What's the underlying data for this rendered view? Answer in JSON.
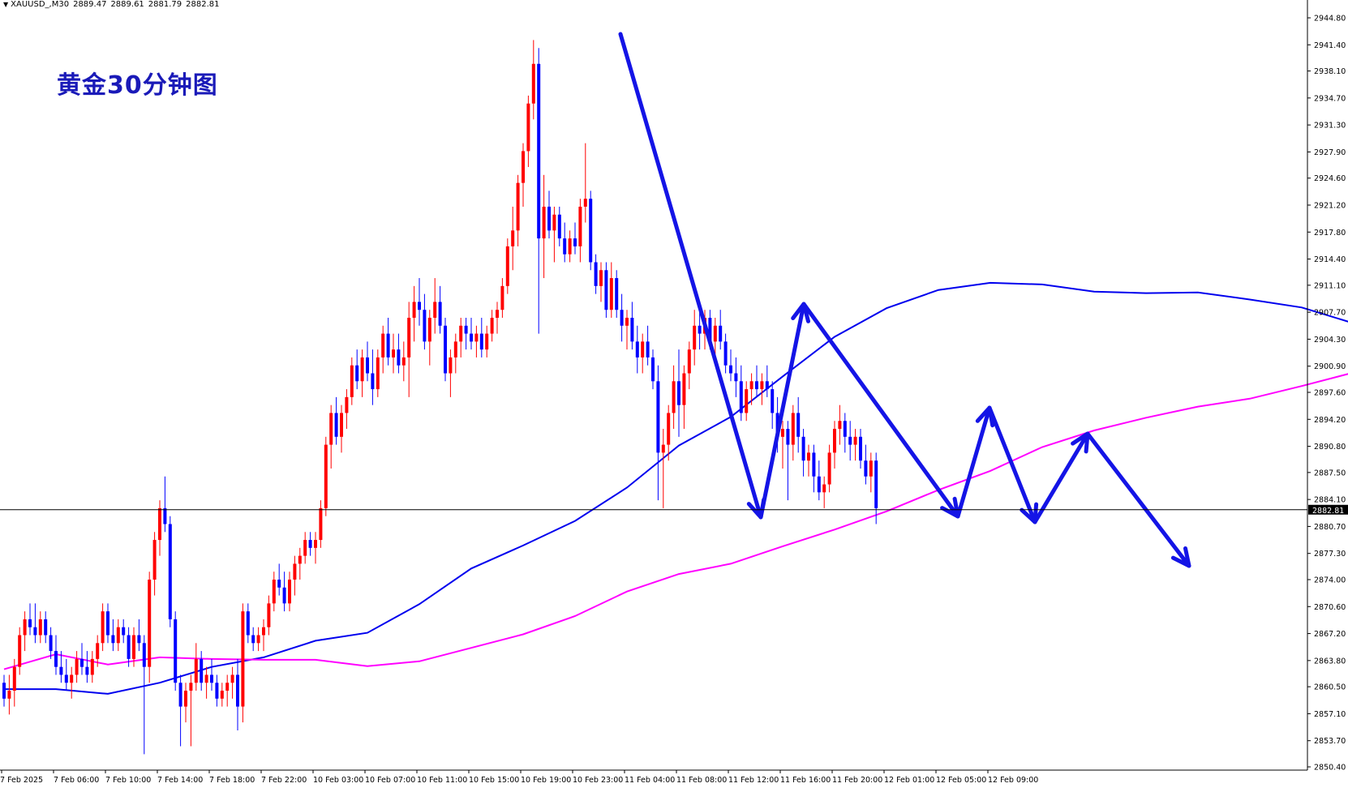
{
  "header": {
    "symbol": "XAUUSD_,M30",
    "open": "2889.47",
    "high": "2889.61",
    "low": "2881.79",
    "close": "2882.81"
  },
  "annotation_title": "黄金30分钟图",
  "colors": {
    "bull_candle": "#ff0000",
    "bear_candle": "#0000ff",
    "ma_fast": "#0000ee",
    "ma_slow": "#ff00ff",
    "arrows": "#1414e6",
    "price_line": "#000000",
    "price_tag_bg": "#000000",
    "title": "#1a1ab8"
  },
  "chart_data": {
    "type": "candlestick",
    "ylim": [
      2850.4,
      2946.0
    ],
    "y_ticks": [
      "2944.80",
      "2941.40",
      "2938.10",
      "2934.70",
      "2931.30",
      "2927.90",
      "2924.60",
      "2921.20",
      "2917.80",
      "2914.40",
      "2911.10",
      "2907.70",
      "2904.30",
      "2900.90",
      "2897.60",
      "2894.20",
      "2890.80",
      "2887.50",
      "2884.10",
      "2880.70",
      "2877.30",
      "2874.00",
      "2870.60",
      "2867.20",
      "2863.80",
      "2860.50",
      "2857.10",
      "2853.70",
      "2850.40"
    ],
    "x_ticks": [
      "7 Feb 2025",
      "7 Feb 06:00",
      "7 Feb 10:00",
      "7 Feb 14:00",
      "7 Feb 18:00",
      "7 Feb 22:00",
      "10 Feb 03:00",
      "10 Feb 07:00",
      "10 Feb 11:00",
      "10 Feb 15:00",
      "10 Feb 19:00",
      "10 Feb 23:00",
      "11 Feb 04:00",
      "11 Feb 08:00",
      "11 Feb 12:00",
      "11 Feb 16:00",
      "11 Feb 20:00",
      "12 Feb 01:00",
      "12 Feb 05:00",
      "12 Feb 09:00"
    ],
    "current_price": "2882.81",
    "current_value": 2882.81,
    "candles": [
      [
        2861,
        2862,
        2858,
        2859
      ],
      [
        2859,
        2862,
        2857,
        2860
      ],
      [
        2860,
        2864,
        2858,
        2863
      ],
      [
        2863,
        2868,
        2862,
        2867
      ],
      [
        2867,
        2870,
        2865,
        2869
      ],
      [
        2869,
        2871,
        2867,
        2868
      ],
      [
        2868,
        2871,
        2866,
        2867
      ],
      [
        2867,
        2870,
        2866,
        2869
      ],
      [
        2869,
        2870,
        2866,
        2867
      ],
      [
        2867,
        2868,
        2864,
        2865
      ],
      [
        2865,
        2867,
        2862,
        2863
      ],
      [
        2863,
        2865,
        2861,
        2862
      ],
      [
        2862,
        2864,
        2860,
        2861
      ],
      [
        2861,
        2863,
        2859,
        2862
      ],
      [
        2862,
        2865,
        2861,
        2864
      ],
      [
        2864,
        2866,
        2862,
        2863
      ],
      [
        2863,
        2865,
        2861,
        2862
      ],
      [
        2862,
        2865,
        2861,
        2864
      ],
      [
        2864,
        2867,
        2863,
        2866
      ],
      [
        2866,
        2871,
        2865,
        2870
      ],
      [
        2870,
        2871,
        2866,
        2867
      ],
      [
        2867,
        2869,
        2865,
        2866
      ],
      [
        2866,
        2869,
        2865,
        2868
      ],
      [
        2868,
        2869,
        2866,
        2867
      ],
      [
        2867,
        2868,
        2863,
        2864
      ],
      [
        2864,
        2868,
        2863,
        2867
      ],
      [
        2867,
        2869,
        2865,
        2866
      ],
      [
        2866,
        2867,
        2852,
        2863
      ],
      [
        2863,
        2875,
        2861,
        2874
      ],
      [
        2874,
        2880,
        2872,
        2879
      ],
      [
        2879,
        2884,
        2877,
        2883
      ],
      [
        2883,
        2887,
        2880,
        2881
      ],
      [
        2881,
        2882,
        2868,
        2869
      ],
      [
        2869,
        2870,
        2860,
        2861
      ],
      [
        2861,
        2862,
        2853,
        2858
      ],
      [
        2858,
        2861,
        2856,
        2860
      ],
      [
        2860,
        2862,
        2853,
        2861
      ],
      [
        2861,
        2866,
        2860,
        2864
      ],
      [
        2864,
        2865,
        2860,
        2861
      ],
      [
        2861,
        2863,
        2859,
        2862
      ],
      [
        2862,
        2864,
        2860,
        2861
      ],
      [
        2861,
        2862,
        2858,
        2859
      ],
      [
        2859,
        2861,
        2858,
        2860
      ],
      [
        2860,
        2862,
        2858,
        2861
      ],
      [
        2861,
        2863,
        2859,
        2862
      ],
      [
        2862,
        2864,
        2855,
        2858
      ],
      [
        2858,
        2871,
        2856,
        2870
      ],
      [
        2870,
        2871,
        2866,
        2867
      ],
      [
        2867,
        2868,
        2865,
        2866
      ],
      [
        2866,
        2868,
        2865,
        2867
      ],
      [
        2867,
        2869,
        2865,
        2868
      ],
      [
        2868,
        2872,
        2867,
        2871
      ],
      [
        2871,
        2875,
        2870,
        2874
      ],
      [
        2874,
        2876,
        2872,
        2873
      ],
      [
        2873,
        2875,
        2870,
        2871
      ],
      [
        2871,
        2875,
        2870,
        2874
      ],
      [
        2874,
        2877,
        2872,
        2876
      ],
      [
        2876,
        2878,
        2874,
        2877
      ],
      [
        2877,
        2880,
        2876,
        2879
      ],
      [
        2879,
        2880,
        2877,
        2878
      ],
      [
        2878,
        2880,
        2876,
        2879
      ],
      [
        2879,
        2884,
        2878,
        2883
      ],
      [
        2883,
        2892,
        2882,
        2891
      ],
      [
        2891,
        2896,
        2888,
        2895
      ],
      [
        2895,
        2897,
        2891,
        2892
      ],
      [
        2892,
        2896,
        2890,
        2895
      ],
      [
        2895,
        2898,
        2893,
        2897
      ],
      [
        2897,
        2902,
        2896,
        2901
      ],
      [
        2901,
        2903,
        2898,
        2899
      ],
      [
        2899,
        2903,
        2897,
        2902
      ],
      [
        2902,
        2904,
        2899,
        2900
      ],
      [
        2900,
        2903,
        2896,
        2898
      ],
      [
        2898,
        2903,
        2897,
        2902
      ],
      [
        2902,
        2906,
        2900,
        2905
      ],
      [
        2905,
        2907,
        2901,
        2902
      ],
      [
        2902,
        2905,
        2900,
        2903
      ],
      [
        2903,
        2905,
        2900,
        2901
      ],
      [
        2901,
        2904,
        2899,
        2902
      ],
      [
        2902,
        2909,
        2897,
        2907
      ],
      [
        2907,
        2911,
        2904,
        2909
      ],
      [
        2909,
        2912,
        2906,
        2908
      ],
      [
        2908,
        2910,
        2903,
        2904
      ],
      [
        2904,
        2908,
        2901,
        2907
      ],
      [
        2907,
        2912,
        2905,
        2909
      ],
      [
        2909,
        2911,
        2905,
        2906
      ],
      [
        2906,
        2907,
        2899,
        2900
      ],
      [
        2900,
        2903,
        2897,
        2902
      ],
      [
        2902,
        2905,
        2900,
        2904
      ],
      [
        2904,
        2907,
        2902,
        2906
      ],
      [
        2906,
        2907,
        2903,
        2905
      ],
      [
        2905,
        2907,
        2903,
        2904
      ],
      [
        2904,
        2906,
        2902,
        2905
      ],
      [
        2905,
        2907,
        2902,
        2903
      ],
      [
        2903,
        2906,
        2902,
        2905
      ],
      [
        2905,
        2908,
        2904,
        2907
      ],
      [
        2907,
        2909,
        2905,
        2908
      ],
      [
        2908,
        2912,
        2907,
        2911
      ],
      [
        2911,
        2917,
        2910,
        2916
      ],
      [
        2916,
        2921,
        2913,
        2918
      ],
      [
        2918,
        2925,
        2916,
        2924
      ],
      [
        2924,
        2929,
        2921,
        2928
      ],
      [
        2928,
        2935,
        2926,
        2934
      ],
      [
        2934,
        2942,
        2932,
        2939
      ],
      [
        2939,
        2941,
        2905,
        2917
      ],
      [
        2917,
        2925,
        2912,
        2921
      ],
      [
        2921,
        2923,
        2917,
        2918
      ],
      [
        2918,
        2921,
        2914,
        2920
      ],
      [
        2920,
        2921,
        2916,
        2917
      ],
      [
        2917,
        2919,
        2914,
        2915
      ],
      [
        2915,
        2918,
        2914,
        2917
      ],
      [
        2917,
        2919,
        2915,
        2916
      ],
      [
        2916,
        2922,
        2914,
        2921
      ],
      [
        2921,
        2929,
        2919,
        2922
      ],
      [
        2922,
        2923,
        2913,
        2914
      ],
      [
        2914,
        2915,
        2910,
        2911
      ],
      [
        2911,
        2914,
        2909,
        2913
      ],
      [
        2913,
        2914,
        2907,
        2908
      ],
      [
        2908,
        2914,
        2907,
        2912
      ],
      [
        2912,
        2913,
        2907,
        2908
      ],
      [
        2908,
        2910,
        2904,
        2906
      ],
      [
        2906,
        2908,
        2903,
        2907
      ],
      [
        2907,
        2909,
        2903,
        2904
      ],
      [
        2904,
        2906,
        2900,
        2902
      ],
      [
        2902,
        2905,
        2900,
        2904
      ],
      [
        2904,
        2906,
        2901,
        2902
      ],
      [
        2902,
        2903,
        2898,
        2899
      ],
      [
        2899,
        2901,
        2884,
        2890
      ],
      [
        2890,
        2893,
        2883,
        2891
      ],
      [
        2891,
        2896,
        2889,
        2895
      ],
      [
        2895,
        2901,
        2893,
        2899
      ],
      [
        2899,
        2903,
        2892,
        2896
      ],
      [
        2896,
        2901,
        2893,
        2900
      ],
      [
        2900,
        2904,
        2898,
        2903
      ],
      [
        2903,
        2908,
        2901,
        2906
      ],
      [
        2906,
        2909,
        2903,
        2905
      ],
      [
        2905,
        2908,
        2903,
        2907
      ],
      [
        2907,
        2908,
        2903,
        2904
      ],
      [
        2904,
        2907,
        2902,
        2906
      ],
      [
        2906,
        2908,
        2903,
        2904
      ],
      [
        2904,
        2905,
        2900,
        2901
      ],
      [
        2901,
        2903,
        2899,
        2900
      ],
      [
        2900,
        2902,
        2897,
        2899
      ],
      [
        2899,
        2901,
        2894,
        2895
      ],
      [
        2895,
        2899,
        2894,
        2898
      ],
      [
        2898,
        2900,
        2896,
        2899
      ],
      [
        2899,
        2901,
        2897,
        2898
      ],
      [
        2898,
        2900,
        2896,
        2899
      ],
      [
        2899,
        2901,
        2897,
        2898
      ],
      [
        2898,
        2899,
        2893,
        2895
      ],
      [
        2895,
        2897,
        2890,
        2892
      ],
      [
        2892,
        2894,
        2888,
        2893
      ],
      [
        2893,
        2894,
        2884,
        2891
      ],
      [
        2891,
        2896,
        2889,
        2895
      ],
      [
        2895,
        2897,
        2890,
        2892
      ],
      [
        2892,
        2893,
        2887,
        2889
      ],
      [
        2889,
        2891,
        2887,
        2890
      ],
      [
        2890,
        2891,
        2885,
        2887
      ],
      [
        2887,
        2889,
        2884,
        2885
      ],
      [
        2885,
        2887,
        2883,
        2886
      ],
      [
        2886,
        2891,
        2885,
        2890
      ],
      [
        2890,
        2894,
        2888,
        2893
      ],
      [
        2893,
        2896,
        2891,
        2894
      ],
      [
        2894,
        2895,
        2890,
        2892
      ],
      [
        2892,
        2894,
        2889,
        2891
      ],
      [
        2891,
        2893,
        2889,
        2892
      ],
      [
        2892,
        2893,
        2888,
        2889
      ],
      [
        2889,
        2891,
        2886,
        2887
      ],
      [
        2887,
        2890,
        2885,
        2889
      ],
      [
        2889,
        2890,
        2881,
        2883
      ]
    ],
    "ma_blue": [
      [
        0,
        2860.2
      ],
      [
        10,
        2860.2
      ],
      [
        20,
        2859.6
      ],
      [
        30,
        2861.0
      ],
      [
        40,
        2863.0
      ],
      [
        50,
        2864.2
      ],
      [
        60,
        2866.3
      ],
      [
        70,
        2867.3
      ],
      [
        80,
        2870.9
      ],
      [
        90,
        2875.4
      ],
      [
        100,
        2878.3
      ],
      [
        110,
        2881.4
      ],
      [
        120,
        2885.6
      ],
      [
        130,
        2890.9
      ],
      [
        140,
        2894.5
      ],
      [
        150,
        2899.6
      ],
      [
        160,
        2904.6
      ],
      [
        170,
        2908.2
      ],
      [
        180,
        2910.5
      ],
      [
        190,
        2911.4
      ],
      [
        200,
        2911.2
      ],
      [
        210,
        2910.3
      ],
      [
        220,
        2910.1
      ],
      [
        230,
        2910.2
      ],
      [
        240,
        2909.3
      ],
      [
        250,
        2908.3
      ],
      [
        260,
        2906.3
      ],
      [
        270,
        2903.3
      ],
      [
        280,
        2901.2
      ],
      [
        290,
        2899.1
      ],
      [
        300,
        2897.9
      ]
    ],
    "ma_magenta": [
      [
        0,
        2862.7
      ],
      [
        10,
        2864.6
      ],
      [
        20,
        2863.3
      ],
      [
        30,
        2864.2
      ],
      [
        40,
        2864.0
      ],
      [
        50,
        2863.9
      ],
      [
        60,
        2863.9
      ],
      [
        70,
        2863.1
      ],
      [
        80,
        2863.7
      ],
      [
        90,
        2865.4
      ],
      [
        100,
        2867.1
      ],
      [
        110,
        2869.4
      ],
      [
        120,
        2872.5
      ],
      [
        130,
        2874.7
      ],
      [
        140,
        2876.0
      ],
      [
        150,
        2878.2
      ],
      [
        160,
        2880.3
      ],
      [
        170,
        2882.6
      ],
      [
        180,
        2885.3
      ],
      [
        190,
        2887.7
      ],
      [
        200,
        2890.7
      ],
      [
        210,
        2892.8
      ],
      [
        220,
        2894.4
      ],
      [
        230,
        2895.8
      ],
      [
        240,
        2896.8
      ],
      [
        250,
        2898.4
      ],
      [
        260,
        2900.1
      ],
      [
        270,
        2901.3
      ],
      [
        280,
        2902.0
      ],
      [
        290,
        2902.7
      ],
      [
        300,
        2902.9
      ]
    ]
  }
}
